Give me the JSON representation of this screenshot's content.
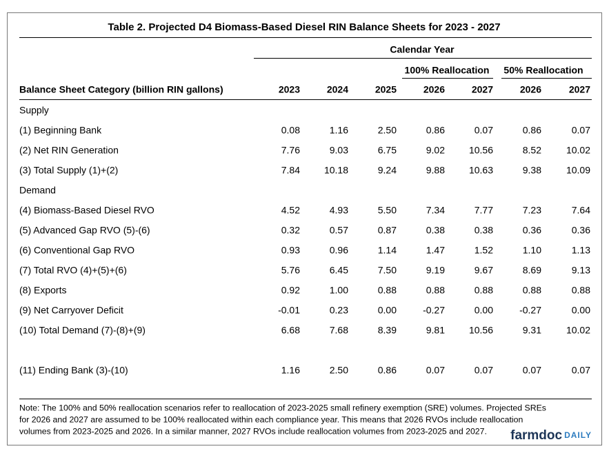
{
  "title": "Table 2. Projected D4 Biomass-Based Diesel RIN Balance Sheets for 2023 - 2027",
  "header": {
    "group": "Calendar Year",
    "subgroups": [
      "100% Reallocation",
      "50% Reallocation"
    ],
    "columns": [
      "Balance Sheet Category (billion RIN gallons)",
      "2023",
      "2024",
      "2025",
      "2026",
      "2027",
      "2026",
      "2027"
    ]
  },
  "sections": [
    {
      "label": "Supply",
      "rows": [
        [
          "(1) Beginning Bank",
          "0.08",
          "1.16",
          "2.50",
          "0.86",
          "0.07",
          "0.86",
          "0.07"
        ],
        [
          "(2) Net RIN Generation",
          "7.76",
          "9.03",
          "6.75",
          "9.02",
          "10.56",
          "8.52",
          "10.02"
        ],
        [
          "(3) Total Supply (1)+(2)",
          "7.84",
          "10.18",
          "9.24",
          "9.88",
          "10.63",
          "9.38",
          "10.09"
        ]
      ]
    },
    {
      "label": "Demand",
      "rows": [
        [
          "(4) Biomass-Based Diesel RVO",
          "4.52",
          "4.93",
          "5.50",
          "7.34",
          "7.77",
          "7.23",
          "7.64"
        ],
        [
          "(5) Advanced Gap RVO (5)-(6)",
          "0.32",
          "0.57",
          "0.87",
          "0.38",
          "0.38",
          "0.36",
          "0.36"
        ],
        [
          "(6) Conventional Gap RVO",
          "0.93",
          "0.96",
          "1.14",
          "1.47",
          "1.52",
          "1.10",
          "1.13"
        ],
        [
          "(7) Total RVO (4)+(5)+(6)",
          "5.76",
          "6.45",
          "7.50",
          "9.19",
          "9.67",
          "8.69",
          "9.13"
        ],
        [
          "(8) Exports",
          "0.92",
          "1.00",
          "0.88",
          "0.88",
          "0.88",
          "0.88",
          "0.88"
        ],
        [
          "(9) Net Carryover Deficit",
          "-0.01",
          "0.23",
          "0.00",
          "-0.27",
          "0.00",
          "-0.27",
          "0.00"
        ],
        [
          "(10) Total Demand (7)-(8)+(9)",
          "6.68",
          "7.68",
          "8.39",
          "9.81",
          "10.56",
          "9.31",
          "10.02"
        ]
      ]
    },
    {
      "rows": [
        [
          "(11) Ending Bank (3)-(10)",
          "1.16",
          "2.50",
          "0.86",
          "0.07",
          "0.07",
          "0.07",
          "0.07"
        ]
      ]
    }
  ],
  "note": [
    "Note: The 100% and 50% reallocation scenarios refer to reallocation of 2023-2025 small refinery exemption (SRE) volumes.  Projected SREs",
    "for 2026 and 2027 are assumed to be 100% reallocated within each compliance year.  This means that 2026 RVOs include reallocation",
    "volumes from 2023-2025 and 2026.  In a similar manner, 2027 RVOs include reallocation volumes from 2023-2025 and 2027."
  ],
  "logo": {
    "main": "farmdoc",
    "accent": "DAILY"
  }
}
